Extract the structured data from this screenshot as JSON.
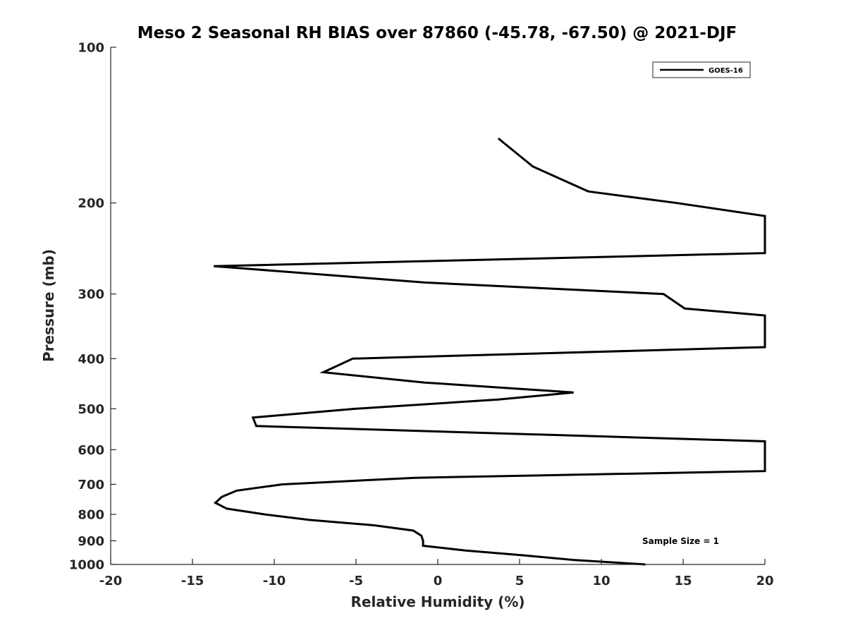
{
  "chart_data": {
    "type": "line",
    "title": "Meso 2 Seasonal RH BIAS over 87860 (-45.78, -67.50) @ 2021-DJF",
    "xlabel": "Relative Humidity (%)",
    "ylabel": "Pressure (mb)",
    "xlim": [
      -20,
      20
    ],
    "ylim": [
      100,
      1000
    ],
    "yscale": "log",
    "y_reversed": true,
    "x_ticks": [
      -20,
      -15,
      -10,
      -5,
      0,
      5,
      10,
      15,
      20
    ],
    "x_tick_labels": [
      "-20",
      "-15",
      "-10",
      "-5",
      "0",
      "5",
      "10",
      "15",
      "20"
    ],
    "y_ticks": [
      100,
      200,
      300,
      400,
      500,
      600,
      700,
      800,
      900,
      1000
    ],
    "y_tick_labels": [
      "100",
      "200",
      "300",
      "400",
      "500",
      "600",
      "700",
      "800",
      "900",
      "1000"
    ],
    "grid": false,
    "legend": {
      "position": "top-right",
      "entries": [
        "GOES-16"
      ]
    },
    "annotation": "Sample Size = 1",
    "series": [
      {
        "name": "GOES-16",
        "color": "#000000",
        "points": [
          [
            3.7,
            150
          ],
          [
            5.8,
            170
          ],
          [
            9.2,
            190
          ],
          [
            14.6,
            200
          ],
          [
            20,
            212
          ],
          [
            20,
            250
          ],
          [
            -13.7,
            265
          ],
          [
            -0.8,
            285
          ],
          [
            13.8,
            300
          ],
          [
            15.1,
            320
          ],
          [
            20,
            330
          ],
          [
            20,
            380
          ],
          [
            -5.2,
            400
          ],
          [
            -7.0,
            425
          ],
          [
            -0.8,
            445
          ],
          [
            8.3,
            465
          ],
          [
            3.7,
            480
          ],
          [
            -5.0,
            500
          ],
          [
            -11.3,
            520
          ],
          [
            -11.1,
            540
          ],
          [
            20,
            578
          ],
          [
            20,
            660
          ],
          [
            -1.4,
            680
          ],
          [
            -9.5,
            700
          ],
          [
            -12.3,
            720
          ],
          [
            -13.2,
            740
          ],
          [
            -13.6,
            760
          ],
          [
            -12.9,
            780
          ],
          [
            -10.6,
            800
          ],
          [
            -7.9,
            820
          ],
          [
            -3.9,
            840
          ],
          [
            -1.5,
            860
          ],
          [
            -1.0,
            880
          ],
          [
            -0.9,
            900
          ],
          [
            -0.9,
            920
          ],
          [
            1.7,
            940
          ],
          [
            5.2,
            960
          ],
          [
            8.3,
            980
          ],
          [
            12.7,
            1000
          ]
        ]
      }
    ]
  }
}
